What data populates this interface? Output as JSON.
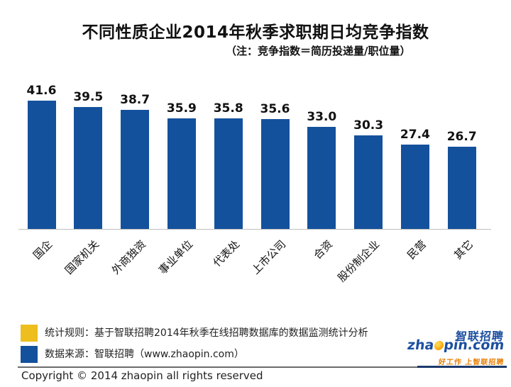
{
  "title": "不同性质企业2014年秋季求职期日均竞争指数",
  "subtitle": "（注：竞争指数＝简历投递量/职位量）",
  "chart_data": {
    "type": "bar",
    "title": "不同性质企业2014年秋季求职期日均竞争指数",
    "note": "（注：竞争指数＝简历投递量/职位量）",
    "categories": [
      "国企",
      "国家机关",
      "外商独资",
      "事业单位",
      "代表处",
      "上市公司",
      "合资",
      "股份制企业",
      "民营",
      "其它"
    ],
    "values": [
      41.6,
      39.5,
      38.7,
      35.9,
      35.8,
      35.6,
      33.0,
      30.3,
      27.4,
      26.7
    ],
    "value_labels": [
      "41.6",
      "39.5",
      "38.7",
      "35.9",
      "35.8",
      "35.6",
      "33.0",
      "30.3",
      "27.4",
      "26.7"
    ],
    "xlabel": "",
    "ylabel": "",
    "ylim": [
      0,
      45
    ],
    "grid": false,
    "legend_position": "none",
    "bar_color": "#14519c",
    "axis_line_color": "#bfbfbf",
    "value_label_color": "#111111"
  },
  "footer": {
    "legend": [
      {
        "swatch_color": "#edbe1e",
        "text": "统计规则：基于智联招聘2014年秋季在线招聘数据库的数据监测统计分析"
      },
      {
        "swatch_color": "#14519c",
        "text": "数据来源：智联招聘（www.zhaopin.com）"
      }
    ],
    "copyright": "Copyright  ©  2014 zhaopin all rights reserved"
  },
  "logo": {
    "cn_name": "智联招聘",
    "domain_prefix": "zha",
    "domain_suffix": "pin.com",
    "tagline": "好工作 上智联招聘",
    "blue": "#1c4fa0",
    "orange": "#f5a100",
    "tagline_color": "#e87d00"
  }
}
